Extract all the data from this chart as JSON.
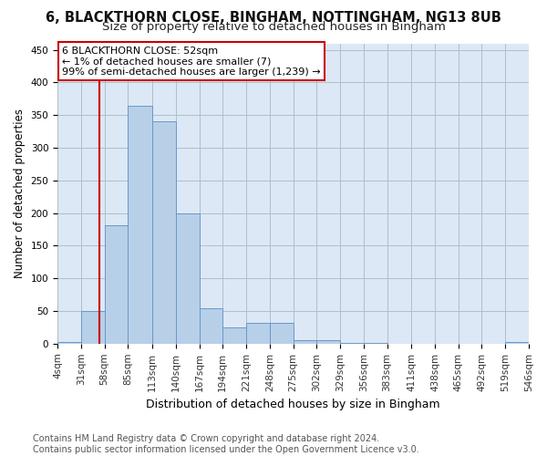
{
  "title_line1": "6, BLACKTHORN CLOSE, BINGHAM, NOTTINGHAM, NG13 8UB",
  "title_line2": "Size of property relative to detached houses in Bingham",
  "xlabel": "Distribution of detached houses by size in Bingham",
  "ylabel": "Number of detached properties",
  "bar_edges": [
    4,
    31,
    58,
    85,
    113,
    140,
    167,
    194,
    221,
    248,
    275,
    302,
    329,
    356,
    383,
    411,
    438,
    465,
    492,
    519,
    546
  ],
  "bar_heights": [
    2,
    50,
    182,
    365,
    340,
    199,
    54,
    25,
    32,
    32,
    6,
    6,
    1,
    1,
    0,
    0,
    0,
    0,
    0,
    2
  ],
  "bar_color": "#b8cfe8",
  "bar_edge_color": "#6699cc",
  "vline_x": 52,
  "vline_color": "#cc0000",
  "annotation_box_text": "6 BLACKTHORN CLOSE: 52sqm\n← 1% of detached houses are smaller (7)\n99% of semi-detached houses are larger (1,239) →",
  "annotation_box_color": "#cc0000",
  "annotation_box_bg": "#ffffff",
  "ylim": [
    0,
    460
  ],
  "yticks": [
    0,
    50,
    100,
    150,
    200,
    250,
    300,
    350,
    400,
    450
  ],
  "footer_line1": "Contains HM Land Registry data © Crown copyright and database right 2024.",
  "footer_line2": "Contains public sector information licensed under the Open Government Licence v3.0.",
  "bg_color": "#ffffff",
  "plot_bg_color": "#dce8f5",
  "grid_color": "#b0bec5",
  "tick_label_color": "#333333",
  "title_fontsize": 10.5,
  "subtitle_fontsize": 9.5,
  "ylabel_fontsize": 8.5,
  "xlabel_fontsize": 9,
  "tick_fontsize": 7.5,
  "annot_fontsize": 8,
  "footer_fontsize": 7
}
